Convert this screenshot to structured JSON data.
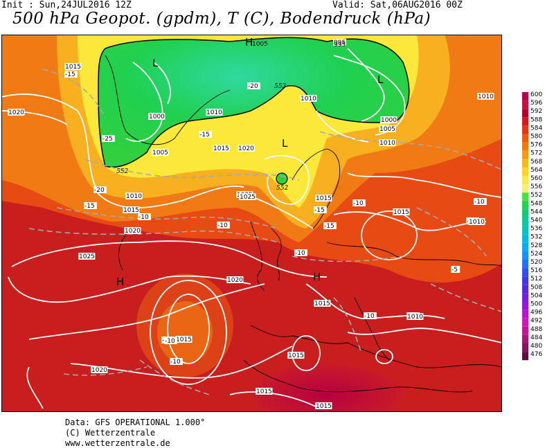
{
  "header": {
    "init": "Init : Sun,24JUL2016 12Z",
    "valid": "Valid: Sat,06AUG2016 00Z",
    "title": "500 hPa Geopot. (gpdm), T (C), Bodendruck (hPa)"
  },
  "map": {
    "pressure_labels": [
      "1015",
      "-15",
      "1020",
      "1005",
      "1000",
      "1010",
      "1015",
      "1020",
      "1010",
      "-25",
      "-20",
      "-15",
      "1015",
      "-10",
      "1020",
      "-10",
      "1025",
      "1010",
      "1000",
      "1005",
      "1010",
      "1015",
      "-10",
      "-10",
      "1015",
      "-10",
      "-15",
      "1010",
      "-10",
      "1025",
      "1020",
      "1015",
      "-10",
      "-15",
      "-10",
      "1015",
      "-10",
      "-5",
      "1010",
      "1025",
      "1015",
      "-15",
      "-10",
      "1020",
      "1015",
      "1015",
      "1010",
      "995",
      "-20",
      "-15"
    ],
    "height_labels": [
      "552",
      "552",
      "552"
    ],
    "pressure_centers": [
      {
        "type": "L",
        "label": "L"
      },
      {
        "type": "L",
        "label": "L"
      },
      {
        "type": "L",
        "label": "L"
      },
      {
        "type": "H",
        "label": "H"
      },
      {
        "type": "H",
        "label": "H"
      },
      {
        "type": "H",
        "label": "H"
      }
    ],
    "isobar_labels_top": [
      "1005",
      "995"
    ]
  },
  "legend": {
    "values": [
      "600",
      "596",
      "592",
      "588",
      "584",
      "580",
      "576",
      "572",
      "568",
      "564",
      "560",
      "556",
      "552",
      "548",
      "544",
      "540",
      "536",
      "532",
      "528",
      "524",
      "520",
      "516",
      "512",
      "508",
      "504",
      "500",
      "496",
      "492",
      "488",
      "484",
      "480",
      "476"
    ],
    "colors": [
      "#b4004e",
      "#c8103c",
      "#b0002c",
      "#d01c1c",
      "#e2381a",
      "#ec5a14",
      "#f07a14",
      "#f49a18",
      "#f8b820",
      "#fcd428",
      "#fce84a",
      "#f4f078",
      "#4ce040",
      "#28d050",
      "#18c878",
      "#10c8a0",
      "#10c0c0",
      "#10b8d8",
      "#10a8f0",
      "#1890f8",
      "#2070f8",
      "#3050f0",
      "#4038e8",
      "#5828e0",
      "#7820e0",
      "#9818d8",
      "#b818c8",
      "#d018b8",
      "#c01890",
      "#a01878",
      "#801860",
      "#601040"
    ]
  },
  "footer": {
    "line1": "Data: GFS OPERATIONAL 1.000°",
    "line2": "(C) Wetterzentrale",
    "line3": "www.wetterzentrale.de"
  }
}
